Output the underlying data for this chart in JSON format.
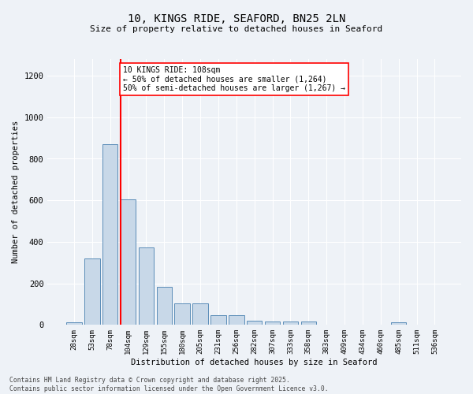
{
  "title_line1": "10, KINGS RIDE, SEAFORD, BN25 2LN",
  "title_line2": "Size of property relative to detached houses in Seaford",
  "xlabel": "Distribution of detached houses by size in Seaford",
  "ylabel": "Number of detached properties",
  "categories": [
    "28sqm",
    "53sqm",
    "78sqm",
    "104sqm",
    "129sqm",
    "155sqm",
    "180sqm",
    "205sqm",
    "231sqm",
    "256sqm",
    "282sqm",
    "307sqm",
    "333sqm",
    "358sqm",
    "383sqm",
    "409sqm",
    "434sqm",
    "460sqm",
    "485sqm",
    "511sqm",
    "536sqm"
  ],
  "values": [
    13,
    320,
    870,
    605,
    375,
    183,
    105,
    105,
    47,
    47,
    20,
    18,
    18,
    18,
    0,
    0,
    0,
    0,
    13,
    0,
    0
  ],
  "bar_color": "#c8d8e8",
  "bar_edge_color": "#5b8db8",
  "vline_color": "red",
  "vline_bar_index": 3,
  "annotation_text": "10 KINGS RIDE: 108sqm\n← 50% of detached houses are smaller (1,264)\n50% of semi-detached houses are larger (1,267) →",
  "annotation_box_color": "white",
  "annotation_box_edge": "red",
  "ylim": [
    0,
    1280
  ],
  "yticks": [
    0,
    200,
    400,
    600,
    800,
    1000,
    1200
  ],
  "background_color": "#eef2f7",
  "grid_color": "white",
  "footer_line1": "Contains HM Land Registry data © Crown copyright and database right 2025.",
  "footer_line2": "Contains public sector information licensed under the Open Government Licence v3.0."
}
